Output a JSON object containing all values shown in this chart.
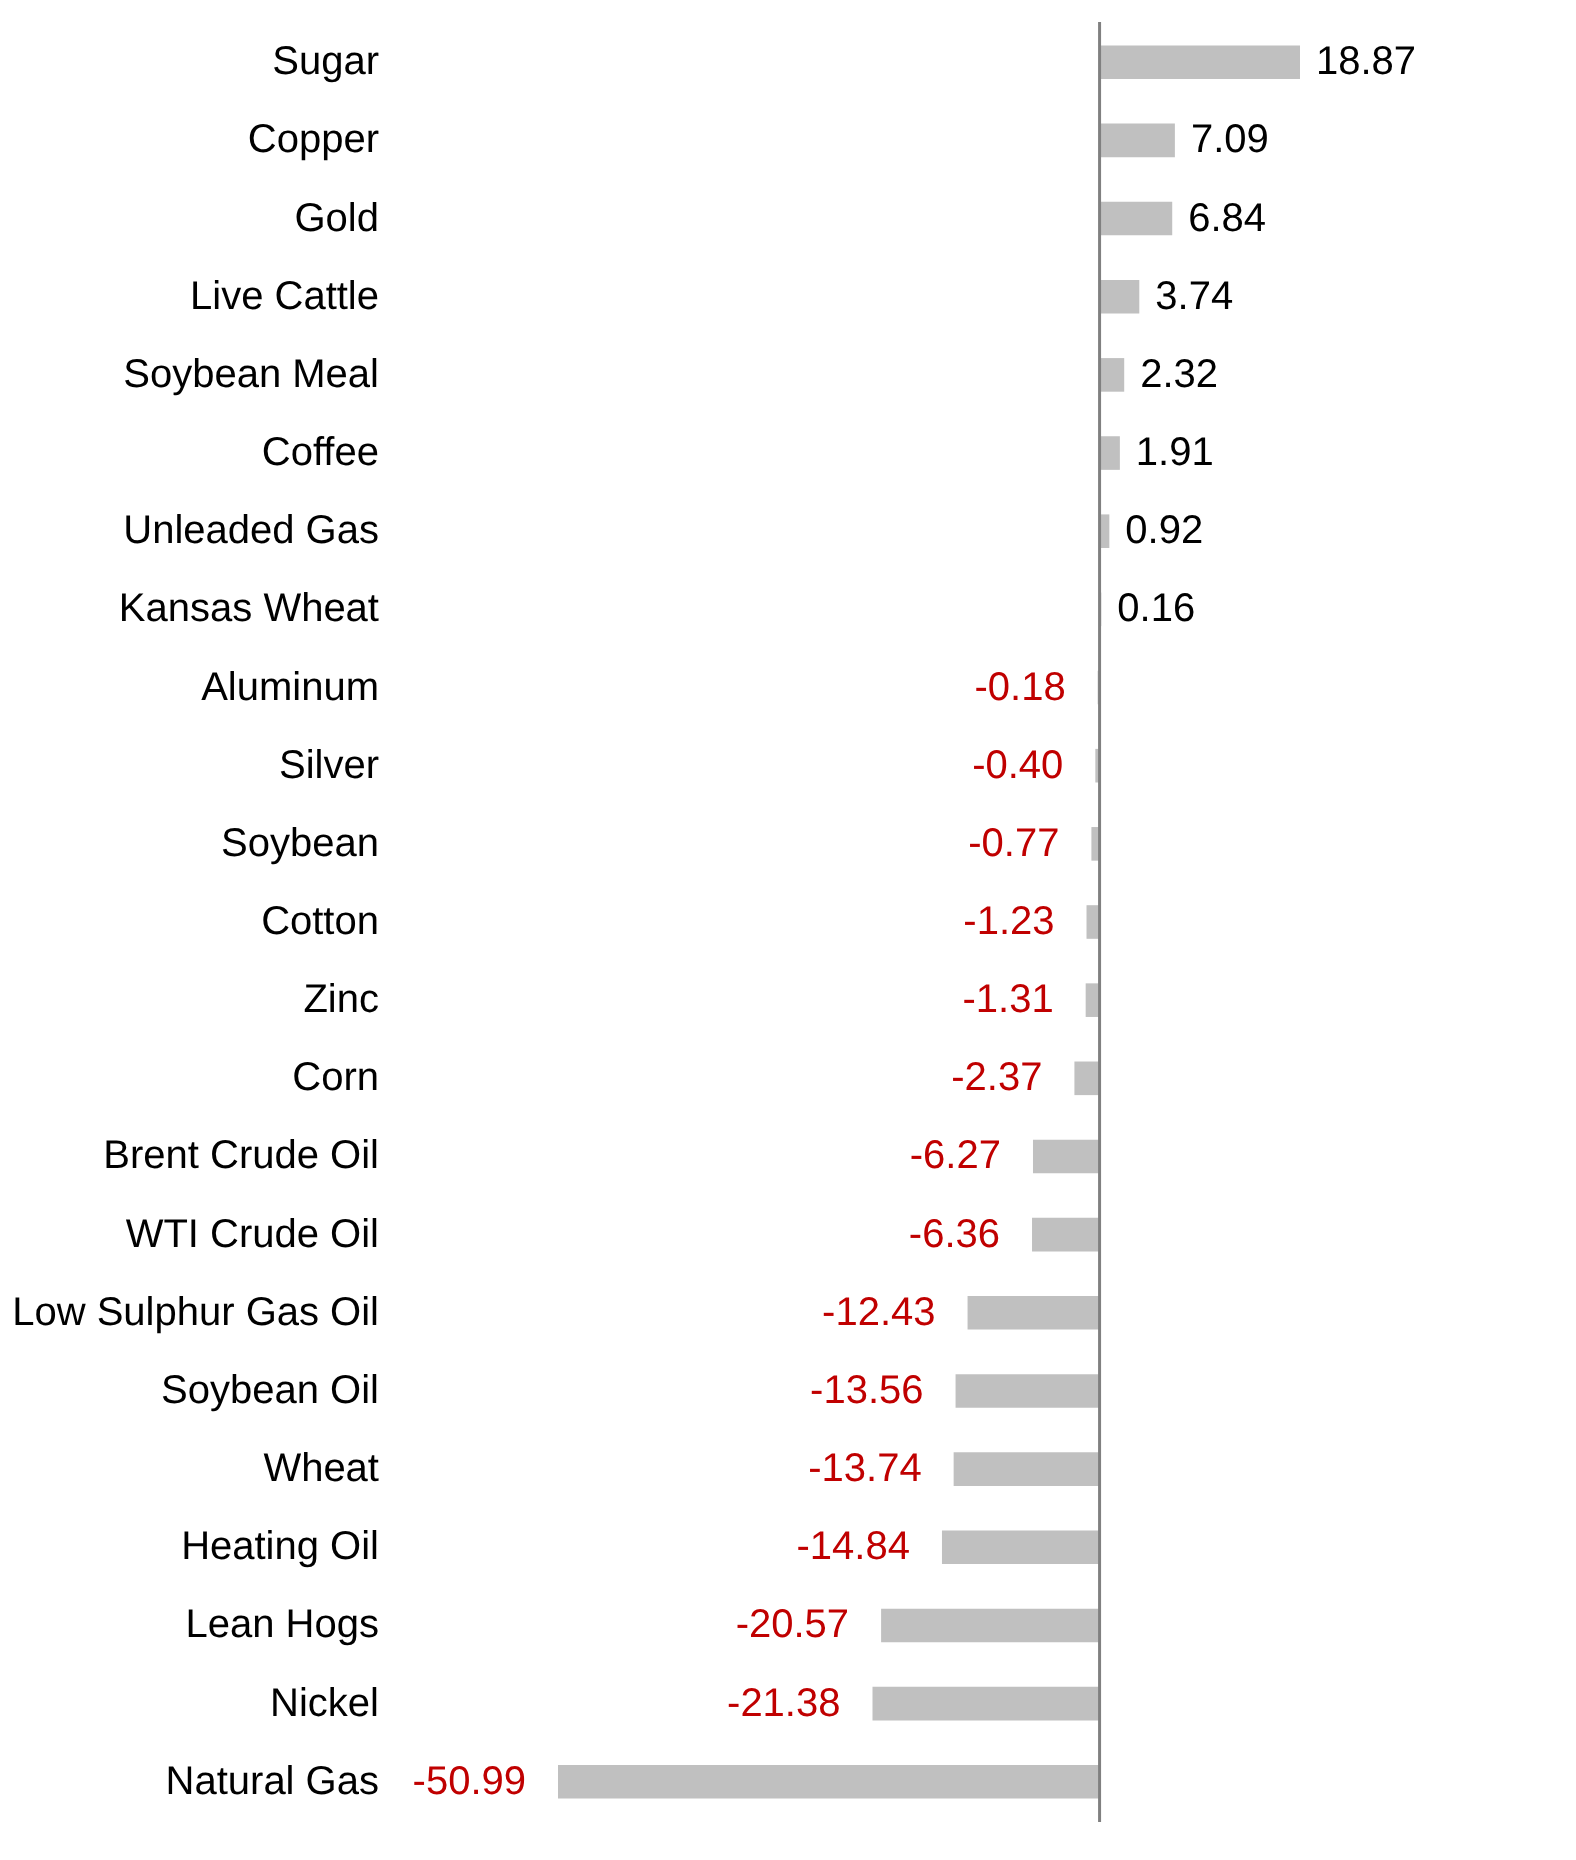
{
  "chart_data": {
    "type": "bar",
    "orientation": "horizontal",
    "value_labels": [
      "18.87",
      "7.09",
      "6.84",
      "3.74",
      "2.32",
      "1.91",
      "0.92",
      "0.16",
      "-0.18",
      "-0.40",
      "-0.77",
      "-1.23",
      "-1.31",
      "-2.37",
      "-6.27",
      "-6.36",
      "-12.43",
      "-13.56",
      "-13.74",
      "-14.84",
      "-20.57",
      "-21.38",
      "-50.99"
    ],
    "color": "#c0c0c0",
    "categories": [
      "Sugar",
      "Copper",
      "Gold",
      "Live Cattle",
      "Soybean Meal",
      "Coffee",
      "Unleaded Gas",
      "Kansas Wheat",
      "Aluminum",
      "Silver",
      "Soybean",
      "Cotton",
      "Zinc",
      "Corn",
      "Brent Crude Oil",
      "WTI Crude Oil",
      "Low Sulphur Gas Oil",
      "Soybean Oil",
      "Wheat",
      "Heating Oil",
      "Lean Hogs",
      "Nickel",
      "Natural Gas"
    ],
    "values": [
      18.87,
      7.09,
      6.84,
      3.74,
      2.32,
      1.91,
      0.92,
      0.16,
      -0.18,
      -0.4,
      -0.77,
      -1.23,
      -1.31,
      -2.37,
      -6.27,
      -6.36,
      -12.43,
      -13.56,
      -13.74,
      -14.84,
      -20.57,
      -21.38,
      -50.99
    ]
  }
}
